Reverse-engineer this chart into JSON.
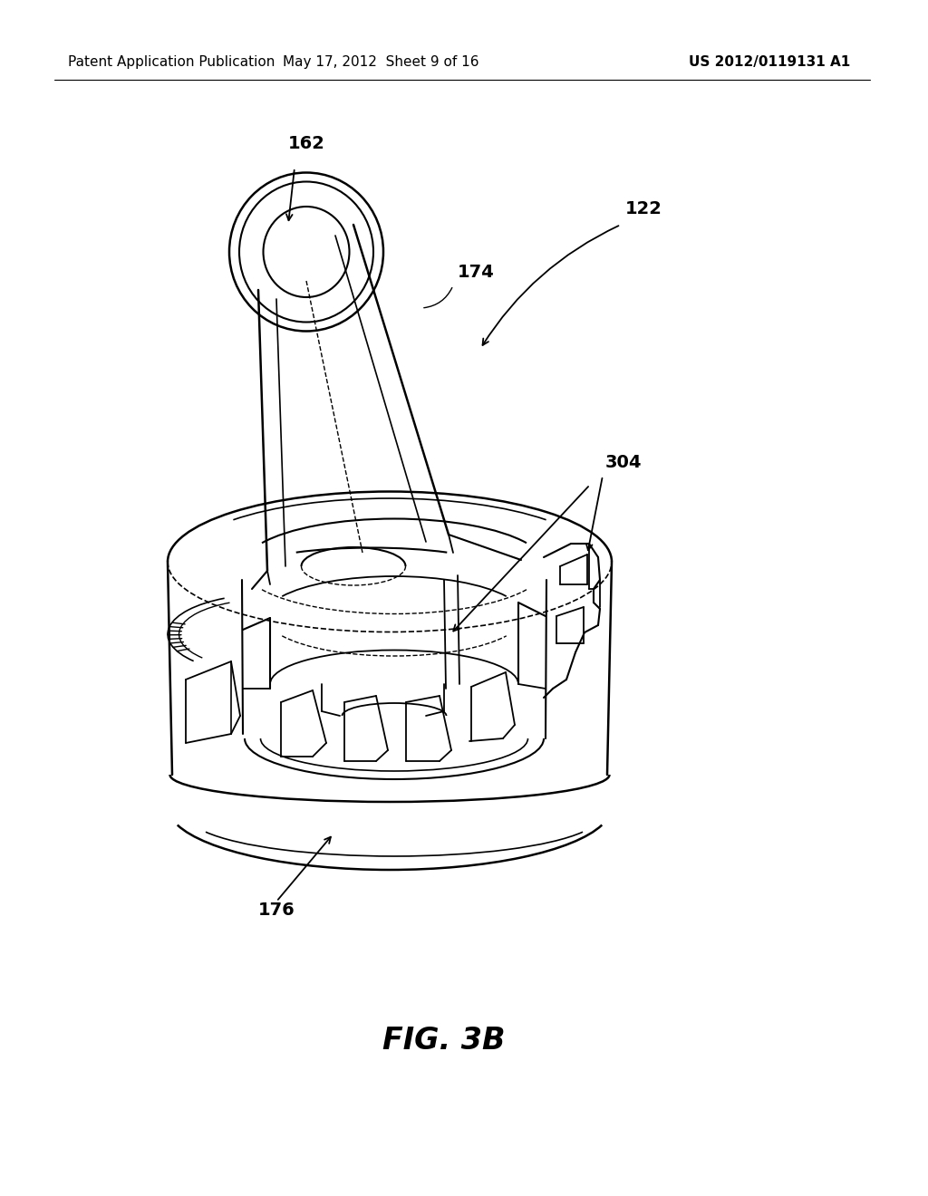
{
  "header_left": "Patent Application Publication",
  "header_center": "May 17, 2012  Sheet 9 of 16",
  "header_right": "US 2012/0119131 A1",
  "figure_label": "FIG. 3B",
  "bg_color": "#ffffff",
  "line_color": "#000000",
  "header_fontsize": 11,
  "figure_label_fontsize": 24,
  "label_fontsize": 14
}
